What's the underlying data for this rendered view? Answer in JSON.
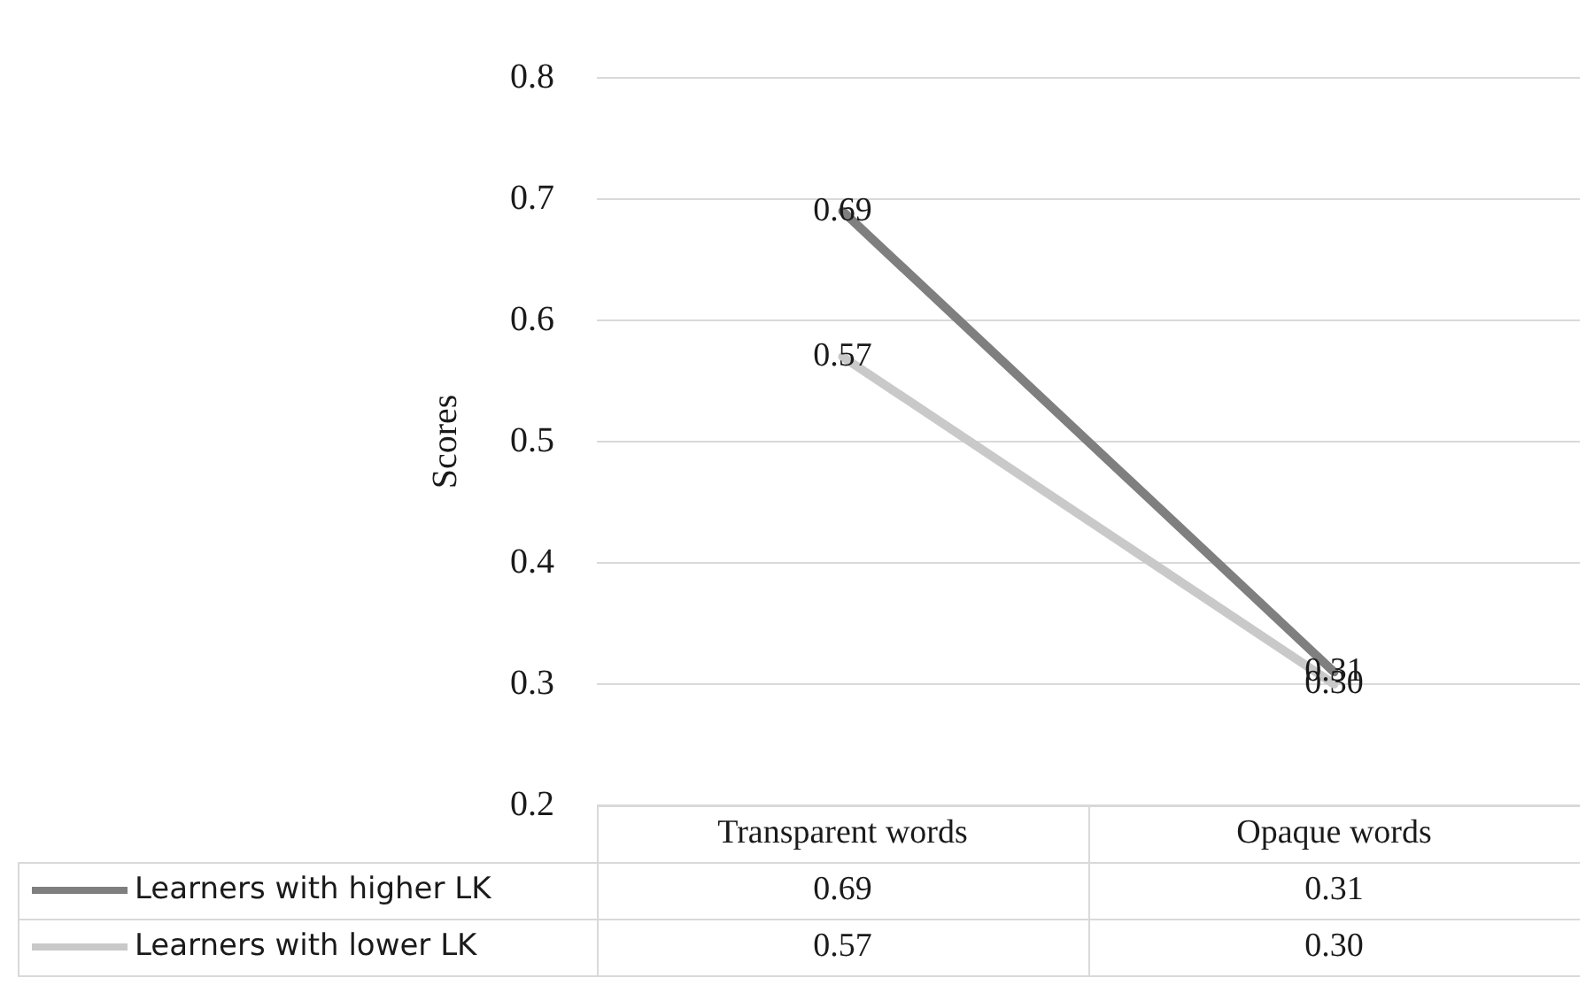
{
  "chart_data": {
    "type": "line",
    "ylabel": "Scores",
    "categories": [
      "Transparent words",
      "Opaque words"
    ],
    "series": [
      {
        "name": "Learners with higher LK",
        "color": "#7f7f7f",
        "values": [
          0.69,
          0.31
        ],
        "value_labels": [
          "0.69",
          "0.31"
        ]
      },
      {
        "name": "Learners with lower LK",
        "color": "#c9c9c9",
        "values": [
          0.57,
          0.3
        ],
        "value_labels": [
          "0.57",
          "0.30"
        ]
      }
    ],
    "ylim": [
      0.2,
      0.8
    ],
    "yticks": [
      0.2,
      0.3,
      0.4,
      0.5,
      0.6,
      0.7,
      0.8
    ],
    "grid": "y",
    "legend": "bottom left",
    "marker": "none",
    "line_style": "solid"
  }
}
